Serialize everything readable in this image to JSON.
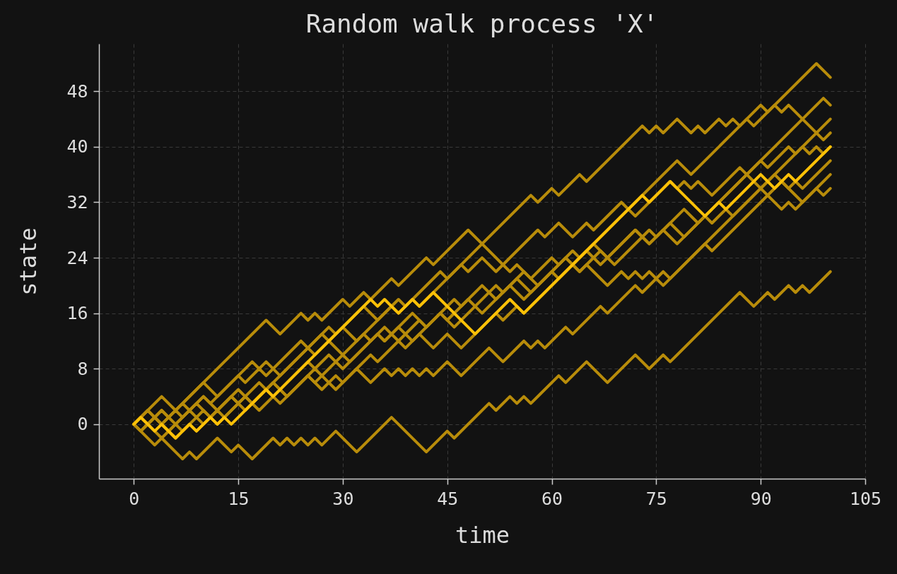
{
  "chart_data": {
    "type": "line",
    "title": "Random walk process 'X'",
    "xlabel": "time",
    "ylabel": "state",
    "xlim": [
      -5,
      105
    ],
    "ylim": [
      -7.85,
      54.85
    ],
    "xticks": [
      0,
      15,
      30,
      45,
      60,
      75,
      90,
      105
    ],
    "yticks": [
      0,
      8,
      16,
      24,
      32,
      40,
      48
    ],
    "grid": true,
    "series": [
      {
        "color": "#b88c0a",
        "x": [
          0,
          3,
          4,
          7,
          8,
          9,
          12,
          14,
          15,
          17,
          20,
          21,
          22,
          23,
          24,
          25,
          26,
          27,
          29,
          32,
          37,
          42,
          45,
          46,
          51,
          52,
          54,
          55,
          56,
          57,
          61,
          62,
          65,
          68,
          72,
          74,
          76,
          77,
          87,
          89,
          91,
          92,
          94,
          95,
          96,
          97,
          100
        ],
        "values": [
          0,
          -3,
          -2,
          -5,
          -4,
          -5,
          -2,
          -4,
          -3,
          -5,
          -2,
          -3,
          -2,
          -3,
          -2,
          -3,
          -2,
          -3,
          -1,
          -4,
          1,
          -4,
          -1,
          -2,
          3,
          2,
          4,
          3,
          4,
          3,
          7,
          6,
          9,
          6,
          10,
          8,
          10,
          9,
          19,
          17,
          19,
          18,
          20,
          19,
          20,
          19,
          22
        ]
      },
      {
        "color": "#b88c0a",
        "x": [
          0,
          4,
          6,
          13,
          19,
          21,
          24,
          25,
          26,
          27,
          30,
          31,
          33,
          34,
          37,
          38,
          42,
          43,
          48,
          50,
          57,
          58,
          60,
          61,
          64,
          65,
          73,
          74,
          75,
          76,
          78,
          80,
          81,
          82,
          84,
          85,
          86,
          87,
          90,
          91,
          92,
          93,
          94,
          99,
          100
        ],
        "values": [
          0,
          4,
          2,
          9,
          15,
          13,
          16,
          15,
          16,
          15,
          18,
          17,
          19,
          18,
          21,
          20,
          24,
          23,
          28,
          26,
          33,
          32,
          34,
          33,
          36,
          35,
          43,
          42,
          43,
          42,
          44,
          42,
          43,
          42,
          44,
          43,
          44,
          43,
          46,
          45,
          46,
          45,
          46,
          41,
          42
        ]
      },
      {
        "color": "#b88c0a",
        "x": [
          0,
          2,
          3,
          4,
          6,
          10,
          11,
          15,
          16,
          18,
          19,
          24,
          25,
          28,
          29,
          33,
          35,
          38,
          39,
          44,
          45,
          50,
          54,
          55,
          57,
          60,
          61,
          63,
          64,
          65,
          78,
          80,
          88,
          89,
          98,
          100
        ],
        "values": [
          0,
          2,
          1,
          2,
          0,
          4,
          3,
          7,
          6,
          8,
          7,
          12,
          11,
          14,
          13,
          17,
          15,
          18,
          17,
          22,
          21,
          26,
          22,
          23,
          21,
          24,
          23,
          25,
          24,
          25,
          38,
          36,
          44,
          43,
          52,
          50
        ]
      },
      {
        "color": "#b88c0a",
        "x": [
          0,
          1,
          4,
          5,
          10,
          12,
          17,
          18,
          19,
          21,
          27,
          28,
          30,
          32,
          37,
          38,
          40,
          41,
          47,
          48,
          50,
          52,
          58,
          59,
          61,
          63,
          65,
          66,
          70,
          72,
          76,
          77,
          78,
          79,
          80,
          81,
          83,
          86,
          87,
          88,
          89,
          99,
          100
        ],
        "values": [
          0,
          -1,
          2,
          1,
          6,
          4,
          9,
          8,
          9,
          7,
          13,
          12,
          14,
          12,
          17,
          16,
          18,
          17,
          23,
          22,
          24,
          22,
          28,
          27,
          29,
          27,
          29,
          28,
          32,
          30,
          34,
          35,
          34,
          35,
          34,
          35,
          33,
          36,
          37,
          36,
          37,
          47,
          46
        ]
      },
      {
        "color": "#b88c0a",
        "x": [
          0,
          1,
          2,
          3,
          5,
          8,
          9,
          10,
          12,
          16,
          17,
          20,
          22,
          26,
          27,
          30,
          31,
          35,
          36,
          40,
          42,
          46,
          47,
          50,
          52,
          56,
          58,
          62,
          63,
          66,
          68,
          72,
          74,
          76,
          78,
          82,
          83,
          85,
          86,
          100
        ],
        "values": [
          0,
          1,
          0,
          1,
          -1,
          2,
          1,
          2,
          0,
          4,
          3,
          6,
          4,
          8,
          7,
          10,
          9,
          13,
          12,
          16,
          14,
          18,
          17,
          20,
          18,
          22,
          20,
          24,
          23,
          26,
          24,
          28,
          26,
          28,
          26,
          30,
          29,
          31,
          30,
          44
        ]
      },
      {
        "color": "#b88c0a",
        "x": [
          0,
          2,
          4,
          7,
          8,
          10,
          12,
          14,
          16,
          25,
          26,
          28,
          30,
          33,
          34,
          36,
          38,
          41,
          42,
          44,
          46,
          52,
          53,
          55,
          57,
          62,
          64,
          67,
          69,
          74,
          75,
          79,
          81,
          90,
          91,
          94,
          95,
          96,
          97,
          98,
          99,
          100
        ],
        "values": [
          0,
          2,
          0,
          3,
          2,
          4,
          2,
          4,
          2,
          11,
          10,
          12,
          10,
          13,
          12,
          14,
          12,
          15,
          14,
          16,
          14,
          20,
          19,
          21,
          19,
          24,
          22,
          25,
          23,
          28,
          27,
          31,
          29,
          38,
          37,
          40,
          39,
          40,
          39,
          40,
          39,
          40
        ]
      },
      {
        "color": "#b88c0a",
        "x": [
          0,
          1,
          3,
          4,
          6,
          7,
          9,
          11,
          14,
          15,
          16,
          18,
          20,
          21,
          25,
          27,
          29,
          30,
          32,
          34,
          36,
          37,
          38,
          39,
          40,
          41,
          42,
          43,
          45,
          47,
          51,
          53,
          56,
          57,
          58,
          59,
          62,
          63,
          67,
          68,
          72,
          73,
          76,
          77,
          89,
          92,
          94,
          95,
          96,
          100
        ],
        "values": [
          0,
          -1,
          1,
          0,
          2,
          1,
          3,
          1,
          4,
          3,
          4,
          2,
          4,
          3,
          7,
          5,
          7,
          6,
          8,
          6,
          8,
          7,
          8,
          7,
          8,
          7,
          8,
          7,
          9,
          7,
          11,
          9,
          12,
          11,
          12,
          11,
          14,
          13,
          17,
          16,
          20,
          19,
          22,
          21,
          33,
          36,
          34,
          35,
          34,
          38
        ]
      },
      {
        "color": "#b88c0a",
        "x": [
          0,
          1,
          2,
          4,
          6,
          7,
          9,
          10,
          12,
          13,
          16,
          17,
          20,
          22,
          25,
          26,
          27,
          29,
          34,
          35,
          38,
          39,
          41,
          43,
          45,
          47,
          52,
          53,
          55,
          56,
          63,
          64,
          65,
          66,
          68,
          70,
          71,
          72,
          73,
          74,
          76,
          82,
          83,
          93,
          96,
          100
        ],
        "values": [
          0,
          -1,
          0,
          -2,
          0,
          -1,
          1,
          0,
          2,
          1,
          4,
          3,
          6,
          4,
          7,
          6,
          7,
          5,
          10,
          9,
          12,
          11,
          13,
          11,
          13,
          11,
          16,
          15,
          17,
          16,
          23,
          22,
          23,
          22,
          20,
          22,
          21,
          22,
          21,
          22,
          20,
          26,
          25,
          35,
          32,
          36
        ]
      },
      {
        "color": "#b88c0a",
        "x": [
          0,
          1,
          2,
          3,
          6,
          8,
          9,
          15,
          16,
          18,
          20,
          25,
          26,
          28,
          30,
          35,
          36,
          38,
          40,
          44,
          45,
          48,
          50,
          54,
          56,
          60,
          61,
          65,
          67,
          72,
          74,
          77,
          79,
          88,
          93,
          94,
          95,
          98,
          99,
          100
        ],
        "values": [
          0,
          1,
          0,
          1,
          -2,
          0,
          -1,
          5,
          4,
          6,
          4,
          9,
          8,
          10,
          8,
          13,
          12,
          14,
          12,
          16,
          15,
          18,
          16,
          20,
          18,
          22,
          21,
          25,
          23,
          28,
          26,
          29,
          27,
          36,
          31,
          32,
          31,
          34,
          33,
          34
        ]
      },
      {
        "color": "#ffc107",
        "x": [
          0,
          1,
          3,
          4,
          6,
          8,
          9,
          11,
          12,
          13,
          14,
          19,
          20,
          34,
          35,
          36,
          38,
          40,
          41,
          43,
          49,
          54,
          56,
          73,
          74,
          76,
          77,
          78,
          82,
          84,
          85,
          90,
          92,
          94,
          95,
          100
        ],
        "values": [
          0,
          1,
          -1,
          0,
          -2,
          0,
          -1,
          1,
          0,
          1,
          0,
          5,
          4,
          18,
          17,
          18,
          16,
          18,
          17,
          19,
          13,
          18,
          16,
          33,
          32,
          34,
          35,
          34,
          30,
          32,
          31,
          36,
          34,
          36,
          35,
          40
        ]
      }
    ]
  }
}
